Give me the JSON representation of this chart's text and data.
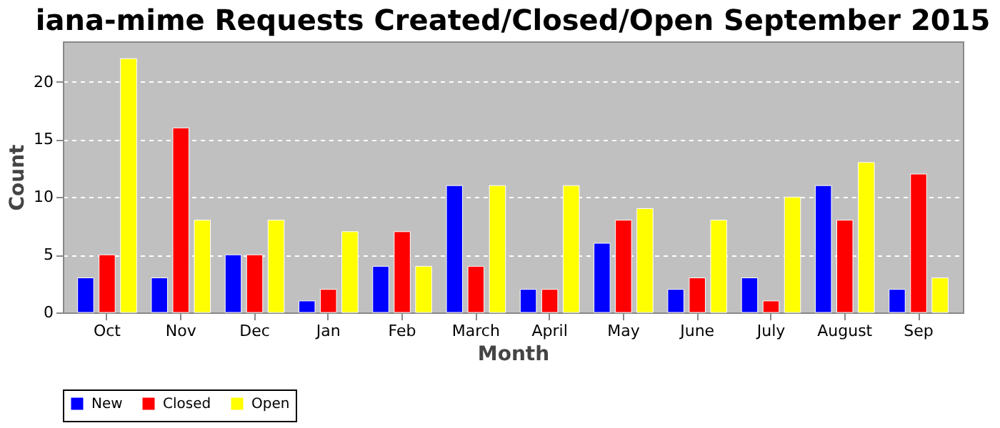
{
  "chart_data": {
    "type": "bar",
    "title": "iana-mime Requests Created/Closed/Open September 2015",
    "xlabel": "Month",
    "ylabel": "Count",
    "categories": [
      "Oct",
      "Nov",
      "Dec",
      "Jan",
      "Feb",
      "March",
      "April",
      "May",
      "June",
      "July",
      "August",
      "Sep"
    ],
    "series": [
      {
        "name": "New",
        "color": "#0000ff",
        "values": [
          3,
          3,
          5,
          1,
          4,
          11,
          2,
          6,
          2,
          3,
          11,
          2
        ]
      },
      {
        "name": "Closed",
        "color": "#ff0000",
        "values": [
          5,
          16,
          5,
          2,
          7,
          4,
          2,
          8,
          3,
          1,
          8,
          12
        ]
      },
      {
        "name": "Open",
        "color": "#ffff00",
        "values": [
          22,
          8,
          8,
          7,
          4,
          11,
          11,
          9,
          8,
          10,
          13,
          3
        ]
      }
    ],
    "ylim": [
      0,
      23.5
    ],
    "yticks": [
      0,
      5,
      10,
      15,
      20
    ],
    "grid": "y",
    "legend": "bottom"
  }
}
